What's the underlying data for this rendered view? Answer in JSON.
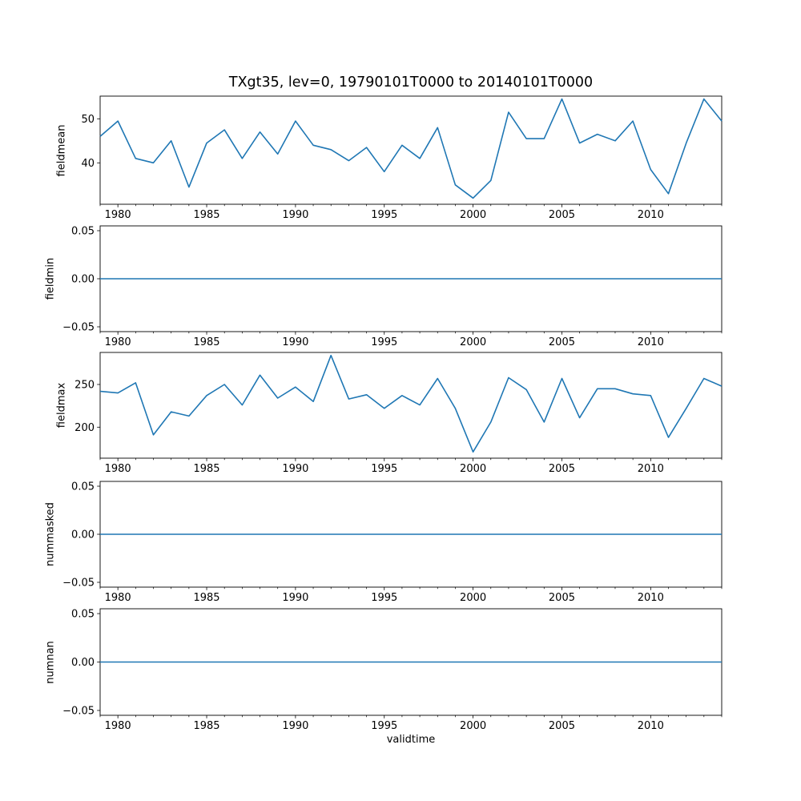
{
  "figure": {
    "title": "TXgt35, lev=0, 19790101T0000 to 20140101T0000",
    "background_color": "#ffffff",
    "line_color": "#1f77b4",
    "text_color": "#000000"
  },
  "chart_data": {
    "type": "line",
    "title": "TXgt35, lev=0, 19790101T0000 to 20140101T0000",
    "xlabel": "validtime",
    "grid": false,
    "legend": false,
    "xlim": [
      1979,
      2014
    ],
    "x_major_ticks": [
      1980,
      1985,
      1990,
      1995,
      2000,
      2005,
      2010
    ],
    "x_tick_labels": [
      "1980",
      "1985",
      "1990",
      "1995",
      "2000",
      "2005",
      "2010"
    ],
    "x_minor_tick_interval_years": 1,
    "x": [
      1979,
      1980,
      1981,
      1982,
      1983,
      1984,
      1985,
      1986,
      1987,
      1988,
      1989,
      1990,
      1991,
      1992,
      1993,
      1994,
      1995,
      1996,
      1997,
      1998,
      1999,
      2000,
      2001,
      2002,
      2003,
      2004,
      2005,
      2006,
      2007,
      2008,
      2009,
      2010,
      2011,
      2012,
      2013,
      2014
    ],
    "subplots": [
      {
        "ylabel": "fieldmean",
        "ylim": [
          30.6,
          55.15
        ],
        "yticks": [
          {
            "value": 40,
            "label": "40"
          },
          {
            "value": 50,
            "label": "50"
          }
        ],
        "values": [
          46,
          49.5,
          41,
          40,
          45,
          34.5,
          44.5,
          47.5,
          41,
          47,
          42,
          49.5,
          44,
          43,
          40.5,
          43.5,
          38,
          44,
          41,
          48,
          35,
          32,
          36,
          51.5,
          45.5,
          45.5,
          54.5,
          44.5,
          46.5,
          45,
          49.5,
          38.5,
          33,
          44.5,
          54.5,
          49.5
        ]
      },
      {
        "ylabel": "fieldmin",
        "ylim": [
          -0.055,
          0.055
        ],
        "yticks": [
          {
            "value": -0.05,
            "label": "−0.05"
          },
          {
            "value": 0,
            "label": "0.00"
          },
          {
            "value": 0.05,
            "label": "0.05"
          }
        ],
        "values": [
          0,
          0,
          0,
          0,
          0,
          0,
          0,
          0,
          0,
          0,
          0,
          0,
          0,
          0,
          0,
          0,
          0,
          0,
          0,
          0,
          0,
          0,
          0,
          0,
          0,
          0,
          0,
          0,
          0,
          0,
          0,
          0,
          0,
          0,
          0,
          0
        ]
      },
      {
        "ylabel": "fieldmax",
        "ylim": [
          163.7,
          287.5
        ],
        "yticks": [
          {
            "value": 200,
            "label": "200"
          },
          {
            "value": 250,
            "label": "250"
          }
        ],
        "values": [
          242,
          240,
          252,
          191,
          218,
          213,
          237,
          250,
          226,
          261,
          234,
          247,
          230,
          284,
          233,
          238,
          222,
          237,
          226,
          257,
          222,
          171,
          206,
          258,
          244,
          206,
          257,
          211,
          245,
          245,
          239,
          237,
          188,
          222,
          257,
          248
        ]
      },
      {
        "ylabel": "nummasked",
        "ylim": [
          -0.055,
          0.055
        ],
        "yticks": [
          {
            "value": -0.05,
            "label": "−0.05"
          },
          {
            "value": 0,
            "label": "0.00"
          },
          {
            "value": 0.05,
            "label": "0.05"
          }
        ],
        "values": [
          0,
          0,
          0,
          0,
          0,
          0,
          0,
          0,
          0,
          0,
          0,
          0,
          0,
          0,
          0,
          0,
          0,
          0,
          0,
          0,
          0,
          0,
          0,
          0,
          0,
          0,
          0,
          0,
          0,
          0,
          0,
          0,
          0,
          0,
          0,
          0
        ]
      },
      {
        "ylabel": "numnan",
        "ylim": [
          -0.055,
          0.055
        ],
        "yticks": [
          {
            "value": -0.05,
            "label": "−0.05"
          },
          {
            "value": 0,
            "label": "0.00"
          },
          {
            "value": 0.05,
            "label": "0.05"
          }
        ],
        "values": [
          0,
          0,
          0,
          0,
          0,
          0,
          0,
          0,
          0,
          0,
          0,
          0,
          0,
          0,
          0,
          0,
          0,
          0,
          0,
          0,
          0,
          0,
          0,
          0,
          0,
          0,
          0,
          0,
          0,
          0,
          0,
          0,
          0,
          0,
          0,
          0
        ]
      }
    ]
  }
}
